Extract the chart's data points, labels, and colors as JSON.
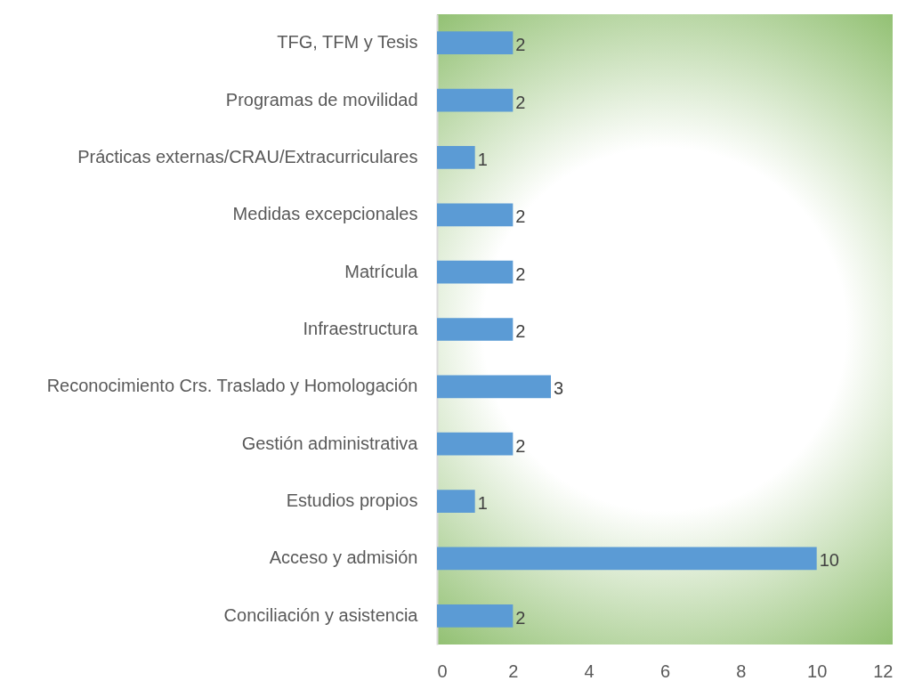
{
  "chart_data": {
    "type": "bar",
    "orientation": "horizontal",
    "categories": [
      "TFG, TFM y Tesis",
      "Programas de movilidad",
      "Prácticas externas/CRAU/Extracurriculares",
      "Medidas excepcionales",
      "Matrícula",
      "Infraestructura",
      "Reconocimiento Crs. Traslado y Homologación",
      "Gestión administrativa",
      "Estudios propios",
      "Acceso y admisión",
      "Conciliación y asistencia"
    ],
    "values": [
      2,
      2,
      1,
      2,
      2,
      2,
      3,
      2,
      1,
      10,
      2
    ],
    "color": "#5b9bd5",
    "xlim": [
      0,
      12
    ],
    "xticks": [
      0,
      2,
      4,
      6,
      8,
      10,
      12
    ],
    "data_labels": true
  }
}
